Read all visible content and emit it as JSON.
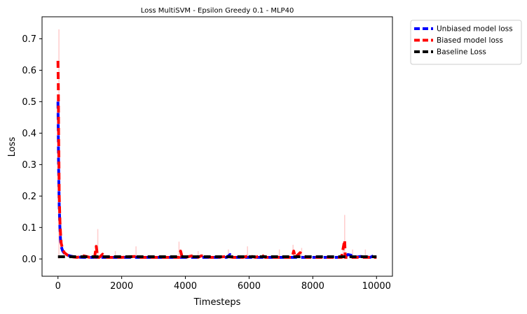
{
  "chart_data": {
    "type": "line",
    "title": "Loss MultiSVM - Epsilon Greedy 0.1 - MLP40",
    "xlabel": "Timesteps",
    "ylabel": "Loss",
    "xlim": [
      -500,
      10500
    ],
    "ylim": [
      -0.055,
      0.77
    ],
    "x_ticks": [
      0,
      2000,
      4000,
      6000,
      8000,
      10000
    ],
    "y_ticks": [
      0.0,
      0.1,
      0.2,
      0.3,
      0.4,
      0.5,
      0.6,
      0.7
    ],
    "x_tick_labels": [
      "0",
      "2000",
      "4000",
      "6000",
      "8000",
      "10000"
    ],
    "y_tick_labels": [
      "0.0",
      "0.1",
      "0.2",
      "0.3",
      "0.4",
      "0.5",
      "0.6",
      "0.7"
    ],
    "grid": false,
    "legend_position": "outside-upper-right",
    "series": [
      {
        "name": "Unbiased model loss",
        "color": "#0000ff",
        "dash": "dashed",
        "x": [
          0,
          10,
          20,
          40,
          60,
          80,
          100,
          150,
          200,
          300,
          400,
          500,
          600,
          800,
          1000,
          1200,
          1500,
          2000,
          2500,
          3000,
          3500,
          4000,
          4500,
          5000,
          5300,
          5400,
          5500,
          6000,
          6500,
          7000,
          7500,
          8000,
          8500,
          9000,
          9100,
          9200,
          9300,
          9500,
          9800,
          9900,
          10000
        ],
        "y": [
          0.5,
          0.4,
          0.3,
          0.17,
          0.1,
          0.06,
          0.04,
          0.025,
          0.018,
          0.012,
          0.009,
          0.007,
          0.006,
          0.005,
          0.005,
          0.005,
          0.005,
          0.005,
          0.005,
          0.005,
          0.005,
          0.005,
          0.005,
          0.005,
          0.005,
          0.014,
          0.005,
          0.005,
          0.005,
          0.005,
          0.005,
          0.005,
          0.005,
          0.005,
          0.014,
          0.012,
          0.005,
          0.008,
          0.005,
          0.01,
          0.005
        ]
      },
      {
        "name": "Biased model loss",
        "color": "#ff0000",
        "dash": "dashed",
        "x": [
          0,
          10,
          20,
          30,
          40,
          60,
          80,
          100,
          150,
          200,
          300,
          400,
          500,
          600,
          800,
          1000,
          1150,
          1200,
          1250,
          1300,
          1400,
          1500,
          1800,
          2000,
          2400,
          2500,
          2600,
          3000,
          3400,
          3800,
          3850,
          3900,
          4000,
          4300,
          4400,
          4500,
          4800,
          5000,
          5300,
          5500,
          5800,
          6000,
          6200,
          6400,
          6500,
          6800,
          7000,
          7350,
          7400,
          7450,
          7600,
          7800,
          8000,
          8300,
          8500,
          8900,
          9000,
          9020,
          9100,
          9200,
          9400,
          9600,
          9800,
          10000
        ],
        "y": [
          0.63,
          0.55,
          0.4,
          0.3,
          0.2,
          0.12,
          0.08,
          0.05,
          0.03,
          0.02,
          0.012,
          0.008,
          0.006,
          0.005,
          0.01,
          0.005,
          0.005,
          0.04,
          0.005,
          0.005,
          0.015,
          0.005,
          0.005,
          0.005,
          0.008,
          0.005,
          0.005,
          0.005,
          0.005,
          0.005,
          0.025,
          0.005,
          0.005,
          0.012,
          0.005,
          0.01,
          0.005,
          0.005,
          0.008,
          0.005,
          0.005,
          0.01,
          0.005,
          0.012,
          0.005,
          0.005,
          0.005,
          0.005,
          0.025,
          0.005,
          0.02,
          0.005,
          0.005,
          0.005,
          0.005,
          0.005,
          0.06,
          0.005,
          0.005,
          0.005,
          0.005,
          0.005,
          0.005,
          0.005
        ]
      },
      {
        "name": "Baseline Loss",
        "color": "#000000",
        "dash": "dashed",
        "x": [
          0,
          10000
        ],
        "y": [
          0.007,
          0.007
        ]
      }
    ],
    "shading": {
      "color": "#ff0000",
      "spikes": [
        {
          "x": 30,
          "y": 0.73
        },
        {
          "x": 1250,
          "y": 0.095
        },
        {
          "x": 1800,
          "y": 0.025
        },
        {
          "x": 2450,
          "y": 0.04
        },
        {
          "x": 3800,
          "y": 0.055
        },
        {
          "x": 4400,
          "y": 0.025
        },
        {
          "x": 5350,
          "y": 0.03
        },
        {
          "x": 5950,
          "y": 0.04
        },
        {
          "x": 6950,
          "y": 0.03
        },
        {
          "x": 7380,
          "y": 0.045
        },
        {
          "x": 7650,
          "y": 0.035
        },
        {
          "x": 8950,
          "y": 0.03
        },
        {
          "x": 9000,
          "y": 0.14
        },
        {
          "x": 9250,
          "y": 0.03
        },
        {
          "x": 9650,
          "y": 0.03
        }
      ]
    }
  }
}
